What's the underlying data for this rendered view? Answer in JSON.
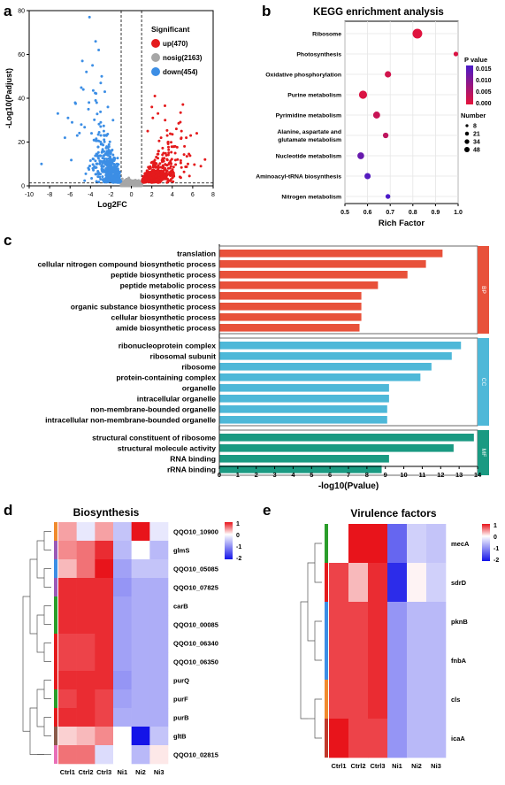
{
  "panel_letters": {
    "a": "a",
    "b": "b",
    "c": "c",
    "d": "d",
    "e": "e"
  },
  "colors": {
    "up": "#e41a1c",
    "nosig": "#a6a6a6",
    "down": "#3c8ee5",
    "bp": "#e8513a",
    "cc": "#4eb8d8",
    "mf": "#1a9a82",
    "heat_hi": "#e8141b",
    "heat_mid": "#ffffff",
    "heat_lo": "#1414e8",
    "pv_lo": "#e4133a",
    "pv_hi": "#4a1ac8"
  },
  "chart_data": [
    {
      "panel": "a",
      "type": "scatter",
      "title": "",
      "xlabel": "Log2FC",
      "ylabel": "-Log10(Padjust)",
      "xlim": [
        -10,
        8
      ],
      "ylim": [
        0,
        80
      ],
      "xticks": [
        "-10",
        "-8",
        "-6",
        "-4",
        "-2",
        "0",
        "2",
        "4",
        "6",
        "8"
      ],
      "yticks": [
        "0",
        "20",
        "40",
        "60",
        "80"
      ],
      "threshold_x": [
        -1,
        1
      ],
      "threshold_y": 1.3,
      "legend_title": "Significant",
      "legend": [
        {
          "key": "up",
          "label": "up(470)"
        },
        {
          "key": "nosig",
          "label": "nosig(2163)"
        },
        {
          "key": "down",
          "label": "down(454)"
        }
      ],
      "counts": {
        "up": 470,
        "nosig": 2163,
        "down": 454
      },
      "sample_points": {
        "down": [
          [
            -4.1,
            77
          ],
          [
            -3.5,
            66
          ],
          [
            -3.2,
            62
          ],
          [
            -4.8,
            57
          ],
          [
            -3.8,
            55
          ],
          [
            -4.4,
            52
          ],
          [
            -2.9,
            50
          ],
          [
            -3.0,
            47
          ],
          [
            -4.7,
            44
          ],
          [
            -2.6,
            43
          ],
          [
            -5.5,
            38
          ],
          [
            -3.4,
            38
          ],
          [
            -4.2,
            35
          ],
          [
            -2.3,
            36
          ],
          [
            -7.2,
            33
          ],
          [
            -6.2,
            31
          ],
          [
            -5.8,
            29
          ],
          [
            -4.9,
            28
          ],
          [
            -3.0,
            29
          ],
          [
            -1.8,
            30
          ],
          [
            -8.8,
            10
          ],
          [
            -6.5,
            22
          ],
          [
            -5.3,
            23
          ],
          [
            -3.9,
            24
          ],
          [
            -2.7,
            25
          ]
        ],
        "up": [
          [
            2.3,
            41
          ],
          [
            2.0,
            36
          ],
          [
            2.6,
            33
          ],
          [
            3.3,
            30
          ],
          [
            2.1,
            31
          ],
          [
            4.4,
            26
          ],
          [
            4.9,
            25
          ],
          [
            5.8,
            23
          ],
          [
            6.4,
            24
          ],
          [
            7.2,
            12
          ],
          [
            6.8,
            9
          ],
          [
            3.6,
            20
          ],
          [
            2.9,
            22
          ],
          [
            1.6,
            25
          ],
          [
            5.2,
            18
          ]
        ]
      }
    },
    {
      "panel": "b",
      "type": "scatter",
      "title": "KEGG enrichment analysis",
      "xlabel": "Rich Factor",
      "ylabel": "",
      "xlim": [
        0.5,
        1.0
      ],
      "xticks": [
        "0.5",
        "0.6",
        "0.7",
        "0.8",
        "0.9",
        "1.0"
      ],
      "categories": [
        "Ribosome",
        "Photosynthesis",
        "Oxidative phosphorylation",
        "Purine metabolism",
        "Pyrimidine metabolism",
        "Alanine, aspartate and\nglutamate metabolism",
        "Nucleotide metabolism",
        "Aminoacyl-tRNA biosynthesis",
        "Nitrogen metabolism"
      ],
      "rich_factor": [
        0.82,
        0.99,
        0.69,
        0.58,
        0.64,
        0.68,
        0.57,
        0.6,
        0.69
      ],
      "number": [
        48,
        5,
        15,
        30,
        20,
        10,
        18,
        14,
        6
      ],
      "p_value": [
        0.0005,
        0.001,
        0.002,
        0.001,
        0.003,
        0.004,
        0.013,
        0.015,
        0.016
      ],
      "colorbar_title": "P value",
      "colorbar_ticks": [
        "0.015",
        "0.010",
        "0.005",
        "0.000"
      ],
      "size_title": "Number",
      "size_ticks": [
        "8",
        "21",
        "34",
        "48"
      ]
    },
    {
      "panel": "c",
      "type": "bar",
      "orientation": "horizontal",
      "title": "",
      "xlabel": "-log10(Pvalue)",
      "xlim": [
        0,
        14
      ],
      "xticks": [
        "0",
        "1",
        "2",
        "3",
        "4",
        "5",
        "6",
        "7",
        "8",
        "9",
        "10",
        "11",
        "12",
        "13",
        "14"
      ],
      "groups": [
        {
          "name": "BP",
          "color_key": "bp",
          "categories": [
            "translation",
            "cellular nitrogen compound biosynthetic process",
            "peptide biosynthetic process",
            "peptide metabolic process",
            "biosynthetic process",
            "organic substance biosynthetic process",
            "cellular biosynthetic process",
            "amide biosynthetic process"
          ],
          "values": [
            12.1,
            11.2,
            10.2,
            8.6,
            7.7,
            7.7,
            7.7,
            7.6
          ]
        },
        {
          "name": "CC",
          "color_key": "cc",
          "categories": [
            "ribonucleoprotein complex",
            "ribosomal subunit",
            "ribosome",
            "protein-containing complex",
            "organelle",
            "intracellular organelle",
            "non-membrane-bounded organelle",
            "intracellular non-membrane-bounded organelle"
          ],
          "values": [
            13.1,
            12.6,
            11.5,
            10.9,
            9.2,
            9.2,
            9.1,
            9.1
          ]
        },
        {
          "name": "MF",
          "color_key": "mf",
          "categories": [
            "structural constituent of ribosome",
            "structural molecule activity",
            "RNA binding",
            "rRNA binding"
          ],
          "values": [
            13.8,
            12.7,
            9.2,
            8.8
          ]
        }
      ]
    },
    {
      "panel": "d",
      "type": "heatmap",
      "title": "Biosynthesis",
      "columns": [
        "Ctrl1",
        "Ctrl2",
        "Ctrl3",
        "Ni1",
        "Ni2",
        "Ni3"
      ],
      "rows": [
        "QQO10_10900",
        "glmS",
        "QQO10_05085",
        "QQO10_07825",
        "carB",
        "QQO10_00085",
        "QQO10_06340",
        "QQO10_06350",
        "purQ",
        "purF",
        "purB",
        "gltB",
        "QQO10_02815"
      ],
      "values": [
        [
          0.4,
          -0.2,
          0.4,
          -0.5,
          1.0,
          -0.2
        ],
        [
          0.5,
          0.6,
          0.9,
          -0.6,
          0.0,
          -0.6
        ],
        [
          0.3,
          0.6,
          1.0,
          -0.8,
          -0.5,
          -0.5
        ],
        [
          0.9,
          0.9,
          0.9,
          -0.9,
          -0.7,
          -0.7
        ],
        [
          0.9,
          0.9,
          0.9,
          -0.8,
          -0.7,
          -0.7
        ],
        [
          0.9,
          0.9,
          0.9,
          -0.8,
          -0.7,
          -0.7
        ],
        [
          0.8,
          0.8,
          0.9,
          -0.8,
          -0.7,
          -0.7
        ],
        [
          0.8,
          0.8,
          0.9,
          -0.8,
          -0.7,
          -0.7
        ],
        [
          0.9,
          0.9,
          0.9,
          -0.9,
          -0.7,
          -0.7
        ],
        [
          0.8,
          0.9,
          0.8,
          -0.8,
          -0.7,
          -0.7
        ],
        [
          0.9,
          0.9,
          0.8,
          -0.7,
          -0.7,
          -0.7
        ],
        [
          0.2,
          0.3,
          0.5,
          0.0,
          -2.0,
          -0.5
        ],
        [
          0.6,
          0.6,
          -0.3,
          0.0,
          -0.6,
          0.1
        ]
      ],
      "row_annotation": [
        "#f08a2e",
        "#9b59b6",
        "#3c8ee5",
        "#9b59b6",
        "#2a9d2a",
        "#2a9d2a",
        "#e41a1c",
        "#e41a1c",
        "#e41a1c",
        "#2a9d2a",
        "#e41a1c",
        "#8b5a4a",
        "#e86fb7"
      ],
      "colorbar_ticks": [
        "1",
        "0",
        "-1",
        "-2"
      ],
      "vmin": -2,
      "vmax": 1
    },
    {
      "panel": "e",
      "type": "heatmap",
      "title": "Virulence factors",
      "columns": [
        "Ctrl1",
        "Ctrl2",
        "Ctrl3",
        "Ni1",
        "Ni2",
        "Ni3"
      ],
      "rows": [
        "mecA",
        "sdrD",
        "pknB",
        "fnbA",
        "cls",
        "icaA"
      ],
      "values": [
        [
          0.0,
          1.0,
          1.0,
          -1.3,
          -0.4,
          -0.5
        ],
        [
          0.8,
          0.3,
          0.9,
          -1.8,
          0.05,
          -0.4
        ],
        [
          0.8,
          0.8,
          0.9,
          -0.9,
          -0.6,
          -0.6
        ],
        [
          0.8,
          0.8,
          0.9,
          -0.9,
          -0.6,
          -0.6
        ],
        [
          0.8,
          0.8,
          0.9,
          -0.9,
          -0.6,
          -0.6
        ],
        [
          1.0,
          0.8,
          0.8,
          -0.9,
          -0.6,
          -0.6
        ]
      ],
      "row_annotation": [
        "#2a9d2a",
        "#e41a1c",
        "#3c8ee5",
        "#3c8ee5",
        "#f08a2e",
        "#c0392b"
      ],
      "colorbar_ticks": [
        "1",
        "0",
        "-1",
        "-2"
      ],
      "vmin": -2,
      "vmax": 1
    }
  ]
}
